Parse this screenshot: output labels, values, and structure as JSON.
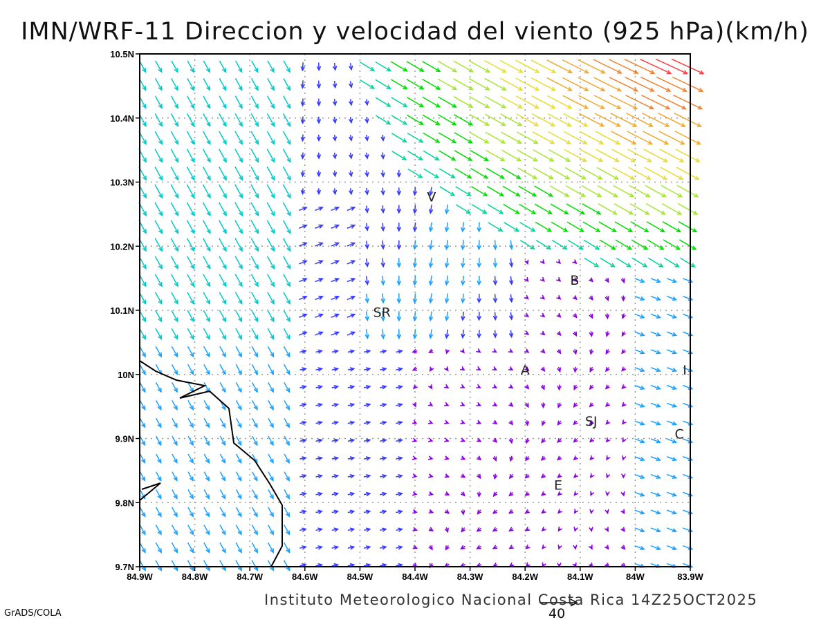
{
  "title": "IMN/WRF-11 Direccion y velocidad del viento (925 hPa)(km/h)",
  "footer": "Instituto Meteorologico Nacional Costa Rica 14Z25OCT2025",
  "credit": "GrADS/COLA",
  "reference_vector": {
    "label": "40",
    "speed_kmh": 40
  },
  "chart_data": {
    "type": "vector-field",
    "title": "IMN/WRF-11 Direccion y velocidad del viento (925 hPa)(km/h)",
    "level_hPa": 925,
    "units": "km/h",
    "valid_time": "14Z25OCT2025",
    "xlim": [
      -84.9,
      -83.9
    ],
    "ylim": [
      9.7,
      10.5
    ],
    "x_ticks": [
      "84.9W",
      "84.8W",
      "84.7W",
      "84.6W",
      "84.5W",
      "84.4W",
      "84.3W",
      "84.2W",
      "84.1W",
      "84W",
      "83.9W"
    ],
    "y_ticks": [
      "9.7N",
      "9.8N",
      "9.9N",
      "10N",
      "10.1N",
      "10.2N",
      "10.3N",
      "10.4N",
      "10.5N"
    ],
    "grid": true,
    "cities": [
      {
        "label": "V",
        "lon": -84.37,
        "lat": 10.27
      },
      {
        "label": "SR",
        "lon": -84.46,
        "lat": 10.09
      },
      {
        "label": "B",
        "lon": -84.11,
        "lat": 10.14
      },
      {
        "label": "A",
        "lon": -84.2,
        "lat": 10.0
      },
      {
        "label": "I",
        "lon": -83.91,
        "lat": 10.0
      },
      {
        "label": "SJ",
        "lon": -84.08,
        "lat": 9.92
      },
      {
        "label": "C",
        "lon": -83.92,
        "lat": 9.9
      },
      {
        "label": "E",
        "lon": -84.14,
        "lat": 9.82
      }
    ],
    "color_scale": [
      "#8a00e0",
      "#3438ff",
      "#1aa0ff",
      "#00c8c8",
      "#00d49a",
      "#00dc00",
      "#a6e632",
      "#e6dc32",
      "#f0a830",
      "#f08230",
      "#fa4040"
    ]
  }
}
